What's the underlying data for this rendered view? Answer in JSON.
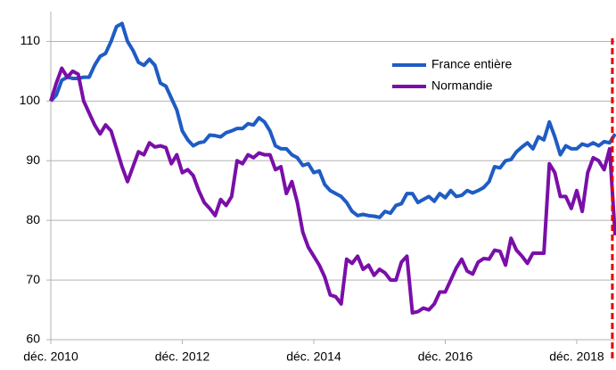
{
  "chart_data": {
    "type": "line",
    "categories": [
      "déc. 2010",
      null,
      null,
      null,
      null,
      null,
      null,
      null,
      null,
      null,
      null,
      null,
      null,
      null,
      null,
      null,
      null,
      null,
      null,
      null,
      null,
      null,
      null,
      null,
      "déc. 2012",
      null,
      null,
      null,
      null,
      null,
      null,
      null,
      null,
      null,
      null,
      null,
      null,
      null,
      null,
      null,
      null,
      null,
      null,
      null,
      null,
      null,
      null,
      null,
      "déc. 2014",
      null,
      null,
      null,
      null,
      null,
      null,
      null,
      null,
      null,
      null,
      null,
      null,
      null,
      null,
      null,
      null,
      null,
      null,
      null,
      null,
      null,
      null,
      null,
      "déc. 2016",
      null,
      null,
      null,
      null,
      null,
      null,
      null,
      null,
      null,
      null,
      null,
      null,
      null,
      null,
      null,
      null,
      null,
      null,
      null,
      null,
      null,
      null,
      null,
      "déc. 2018",
      null,
      null,
      null,
      null,
      null,
      null,
      null
    ],
    "series": [
      {
        "name": "France entière",
        "color": "#1f5cc4",
        "values": [
          100,
          101,
          103.5,
          104,
          103.8,
          103.8,
          104,
          104,
          106,
          107.5,
          108,
          110,
          112.5,
          113,
          110,
          108.5,
          106.5,
          106,
          107,
          106,
          103,
          102.5,
          100.5,
          98.5,
          95,
          93.5,
          92.5,
          93,
          93.2,
          94.3,
          94.2,
          94,
          94.7,
          95,
          95.4,
          95.4,
          96.2,
          96,
          97.2,
          96.5,
          95,
          92.5,
          92,
          92,
          91,
          90.5,
          89.2,
          89.5,
          88,
          88.3,
          86,
          85,
          84.5,
          84,
          83,
          81.5,
          80.8,
          81,
          80.8,
          80.7,
          80.5,
          81.5,
          81.2,
          82.5,
          82.8,
          84.5,
          84.5,
          83,
          83.5,
          84,
          83.2,
          84.5,
          83.8,
          85,
          84,
          84.2,
          85,
          84.6,
          85,
          85.5,
          86.5,
          89,
          88.8,
          90,
          90.2,
          91.5,
          92.3,
          93,
          92,
          94,
          93.5,
          96.5,
          94,
          91,
          92.5,
          92,
          92,
          92.8,
          92.5,
          93,
          92.5,
          93.2,
          93,
          94.5
        ]
      },
      {
        "name": "Normandie",
        "color": "#7a0fa8",
        "values": [
          100,
          103,
          105.5,
          104,
          105,
          104.5,
          100,
          98,
          96,
          94.5,
          96,
          95,
          92,
          89,
          86.5,
          89,
          91.5,
          91,
          93,
          92.3,
          92.5,
          92.2,
          89.5,
          91,
          88,
          88.5,
          87.5,
          85,
          83,
          82,
          80.8,
          83.5,
          82.5,
          84,
          90,
          89.5,
          91,
          90.5,
          91.3,
          91,
          91,
          88.5,
          89,
          84.5,
          86.5,
          83,
          78,
          75.5,
          74,
          72.5,
          70.5,
          67.5,
          67.2,
          66,
          73.5,
          72.8,
          74,
          71.8,
          72.5,
          70.8,
          71.8,
          71.2,
          70,
          70,
          73,
          74,
          64.5,
          64.7,
          65.3,
          65,
          66,
          68,
          68,
          70,
          72,
          73.5,
          71.5,
          71,
          73,
          73.6,
          73.5,
          75,
          74.8,
          72.5,
          77,
          75,
          74,
          72.8,
          74.5,
          74.5,
          74.5,
          89.5,
          88,
          84,
          84,
          82,
          85,
          81.5,
          88,
          90.5,
          90,
          88.5,
          92,
          77.5
        ]
      }
    ],
    "ylim": [
      60,
      115
    ],
    "yticks": [
      60,
      70,
      80,
      90,
      100,
      110
    ],
    "grid": true,
    "legend": "upper right",
    "reference_line": {
      "x_index": 102.5,
      "color": "#e00000"
    }
  }
}
